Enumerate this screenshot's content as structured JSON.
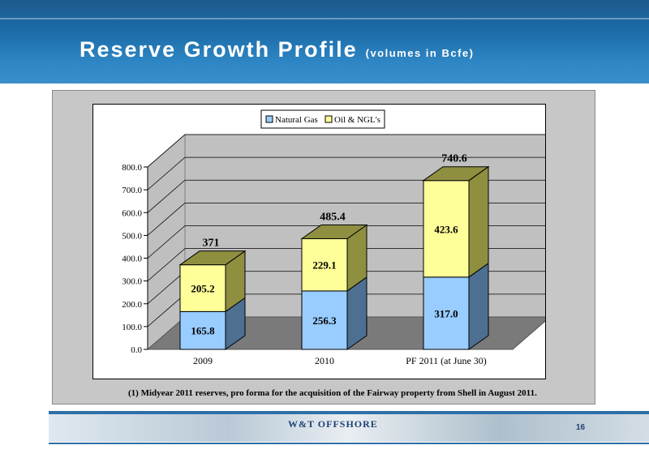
{
  "slide": {
    "title": "Reserve Growth Profile",
    "subtitle": "(volumes in Bcfe)",
    "footnote": "(1) Midyear 2011 reserves, pro forma for the acquisition of the Fairway property from Shell in August 2011.",
    "logo_text": "W&T OFFSHORE",
    "page_number": "16"
  },
  "chart_data": {
    "type": "bar",
    "stacked": true,
    "three_d": true,
    "categories": [
      "2009",
      "2010",
      "PF 2011 (at June 30)"
    ],
    "series": [
      {
        "name": "Natural Gas",
        "values": [
          165.8,
          256.3,
          317.0
        ],
        "value_labels": [
          "165.8",
          "256.3",
          "317.0"
        ],
        "color": "#99ccff",
        "side_color": "#4d6f91"
      },
      {
        "name": "Oil & NGL's",
        "values": [
          205.2,
          229.1,
          423.6
        ],
        "value_labels": [
          "205.2",
          "229.1",
          "423.6"
        ],
        "color": "#ffff99",
        "side_color": "#8f8f40"
      }
    ],
    "totals": [
      "371",
      "485.4",
      "740.6"
    ],
    "y_ticks": [
      "0.0",
      "100.0",
      "200.0",
      "300.0",
      "400.0",
      "500.0",
      "600.0",
      "700.0",
      "800.0"
    ],
    "ylim": [
      0,
      800
    ],
    "grid": true,
    "legend": "top"
  }
}
